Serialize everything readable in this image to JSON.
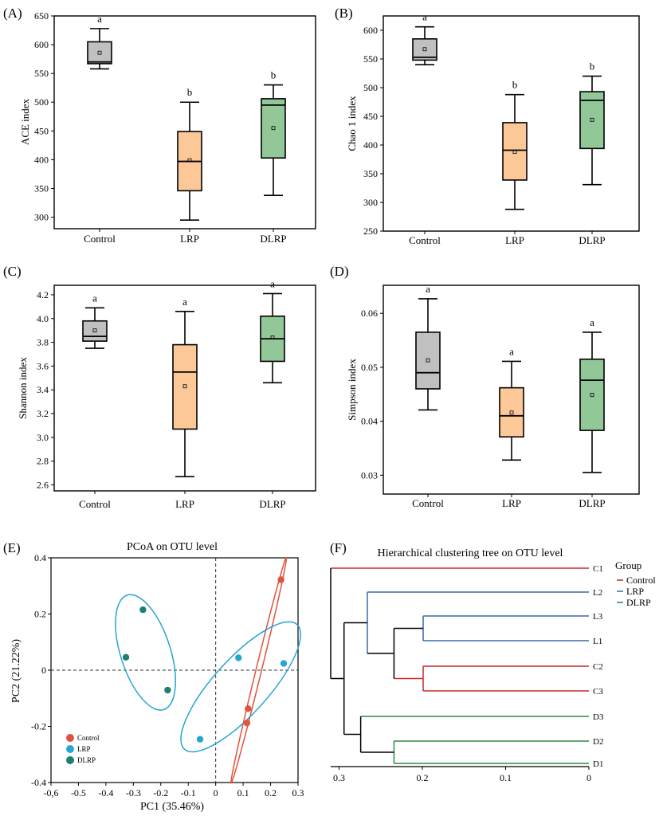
{
  "colors": {
    "control_fill": "#c0c0c0",
    "lrp_fill": "#fdc898",
    "dlrp_fill": "#92c898",
    "control_point": "#e0533c",
    "lrp_point": "#26a6d1",
    "dlrp_point": "#1b8070",
    "tree_control": "#cc2a2a",
    "tree_lrp": "#3a6aa8",
    "tree_dlrp": "#2e8a46"
  },
  "chart_data": [
    {
      "type": "box",
      "panel": "(A)",
      "ylabel": "ACE index",
      "ylim": [
        280,
        650
      ],
      "yticks": [
        300,
        350,
        400,
        450,
        500,
        550,
        600,
        650
      ],
      "ytick_labels": [
        "300",
        "350",
        "400",
        "450",
        "500",
        "550",
        "600",
        "650"
      ],
      "categories": [
        "Control",
        "LRP",
        "DLRP"
      ],
      "boxes": [
        {
          "min": 558,
          "q1": 567,
          "median": 570,
          "q3": 605,
          "max": 628,
          "mean": 586,
          "letter": "a"
        },
        {
          "min": 295,
          "q1": 346,
          "median": 397,
          "q3": 449,
          "max": 500,
          "mean": 399,
          "letter": "b"
        },
        {
          "min": 338,
          "q1": 403,
          "median": 495,
          "q3": 506,
          "max": 530,
          "mean": 455,
          "letter": "b"
        }
      ]
    },
    {
      "type": "box",
      "panel": "(B)",
      "ylabel": "Chao 1 index",
      "ylim": [
        250,
        625
      ],
      "yticks": [
        250,
        300,
        350,
        400,
        450,
        500,
        550,
        600
      ],
      "ytick_labels": [
        "250",
        "300",
        "350",
        "400",
        "450",
        "500",
        "550",
        "600"
      ],
      "categories": [
        "Control",
        "LRP",
        "DLRP"
      ],
      "boxes": [
        {
          "min": 540,
          "q1": 548,
          "median": 553,
          "q3": 585,
          "max": 606,
          "mean": 567,
          "letter": "a"
        },
        {
          "min": 288,
          "q1": 339,
          "median": 391,
          "q3": 439,
          "max": 488,
          "mean": 388,
          "letter": "b"
        },
        {
          "min": 331,
          "q1": 394,
          "median": 478,
          "q3": 493,
          "max": 520,
          "mean": 444,
          "letter": "b"
        }
      ]
    },
    {
      "type": "box",
      "panel": "(C)",
      "ylabel": "Shannon index",
      "ylim": [
        2.55,
        4.28
      ],
      "yticks": [
        2.6,
        2.8,
        3.0,
        3.2,
        3.4,
        3.6,
        3.8,
        4.0,
        4.2
      ],
      "ytick_labels": [
        "2.6",
        "2.8",
        "3.0",
        "3.2",
        "3.4",
        "3.6",
        "3.8",
        "4.0",
        "4.2"
      ],
      "categories": [
        "Control",
        "LRP",
        "DLRP"
      ],
      "boxes": [
        {
          "min": 3.75,
          "q1": 3.81,
          "median": 3.85,
          "q3": 3.98,
          "max": 4.09,
          "mean": 3.9,
          "letter": "a"
        },
        {
          "min": 2.67,
          "q1": 3.07,
          "median": 3.55,
          "q3": 3.78,
          "max": 4.06,
          "mean": 3.43,
          "letter": "a"
        },
        {
          "min": 3.46,
          "q1": 3.64,
          "median": 3.83,
          "q3": 4.02,
          "max": 4.21,
          "mean": 3.84,
          "letter": "a"
        }
      ]
    },
    {
      "type": "box",
      "panel": "(D)",
      "ylabel": "Simpson index",
      "ylim": [
        0.0265,
        0.0652
      ],
      "yticks": [
        0.03,
        0.04,
        0.05,
        0.06
      ],
      "ytick_labels": [
        "0.03",
        "0.04",
        "0.05",
        "0.06"
      ],
      "categories": [
        "Control",
        "LRP",
        "DLRP"
      ],
      "boxes": [
        {
          "min": 0.0421,
          "q1": 0.046,
          "median": 0.049,
          "q3": 0.0565,
          "max": 0.0627,
          "mean": 0.0513,
          "letter": "a"
        },
        {
          "min": 0.0328,
          "q1": 0.0371,
          "median": 0.041,
          "q3": 0.0462,
          "max": 0.0511,
          "mean": 0.0416,
          "letter": "a"
        },
        {
          "min": 0.0305,
          "q1": 0.0383,
          "median": 0.0476,
          "q3": 0.0515,
          "max": 0.0565,
          "mean": 0.0449,
          "letter": "a"
        }
      ]
    },
    {
      "type": "scatter",
      "panel": "(E)",
      "title": "PCoA on OTU level",
      "xlabel": "PC1 (35.46%)",
      "ylabel": "PC2 (21.22%)",
      "xlim": [
        -0.6,
        0.3
      ],
      "ylim": [
        -0.4,
        0.4
      ],
      "xticks": [
        -0.6,
        -0.5,
        -0.4,
        -0.3,
        -0.2,
        -0.1,
        0,
        0.1,
        0.2,
        0.3
      ],
      "xtick_labels": [
        "-0,6",
        "-0.5",
        "-0.4",
        "-0.3",
        "-0.2",
        "-0.1",
        "0",
        "0.1",
        "0.2",
        "0.3"
      ],
      "yticks": [
        -0.4,
        -0.2,
        0,
        0.2,
        0.4
      ],
      "ytick_labels": [
        "-0.4",
        "-0.2",
        "0",
        "0.2",
        "0.4"
      ],
      "series": [
        {
          "name": "Control",
          "points": [
            [
              0.238,
              0.322
            ],
            [
              0.118,
              -0.137
            ],
            [
              0.114,
              -0.188
            ]
          ]
        },
        {
          "name": "LRP",
          "points": [
            [
              0.083,
              0.044
            ],
            [
              0.248,
              0.024
            ],
            [
              -0.057,
              -0.246
            ]
          ]
        },
        {
          "name": "DLRP",
          "points": [
            [
              -0.265,
              0.215
            ],
            [
              -0.327,
              0.046
            ],
            [
              -0.175,
              -0.071
            ]
          ]
        }
      ],
      "legend": [
        "Control",
        "LRP",
        "DLRP"
      ],
      "legend_position": "bottom-left"
    },
    {
      "type": "dendrogram",
      "panel": "(F)",
      "title": "Hierarchical clustering tree on OTU level",
      "xlim": [
        0.31,
        0
      ],
      "xticks": [
        0.3,
        0.2,
        0.1,
        0
      ],
      "xtick_labels": [
        "0.3",
        "0.2",
        "0.1",
        "0"
      ],
      "leaves": [
        {
          "label": "C1",
          "group": "Control"
        },
        {
          "label": "L2",
          "group": "LRP"
        },
        {
          "label": "L3",
          "group": "LRP"
        },
        {
          "label": "L1",
          "group": "LRP"
        },
        {
          "label": "C2",
          "group": "Control"
        },
        {
          "label": "C3",
          "group": "Control"
        },
        {
          "label": "D3",
          "group": "DLRP"
        },
        {
          "label": "D2",
          "group": "DLRP"
        },
        {
          "label": "D1",
          "group": "DLRP"
        }
      ],
      "merges": [
        {
          "a": "L3",
          "b": "L1",
          "h": 0.199
        },
        {
          "a": "C2",
          "b": "C3",
          "h": 0.199
        },
        {
          "a": "L3+L1",
          "b": "C2+C3",
          "h": 0.234
        },
        {
          "a": "L2",
          "b": "L3+L1+C2+C3",
          "h": 0.266
        },
        {
          "a": "D2",
          "b": "D1",
          "h": 0.234
        },
        {
          "a": "D3",
          "b": "D2+D1",
          "h": 0.274
        },
        {
          "a": "LRP-Control cluster",
          "b": "DLRP cluster",
          "h": 0.294
        },
        {
          "a": "C1",
          "b": "rest",
          "h": 0.31
        }
      ],
      "legend_title": "Group",
      "legend": [
        "Control",
        "LRP",
        "DLRP"
      ]
    }
  ]
}
